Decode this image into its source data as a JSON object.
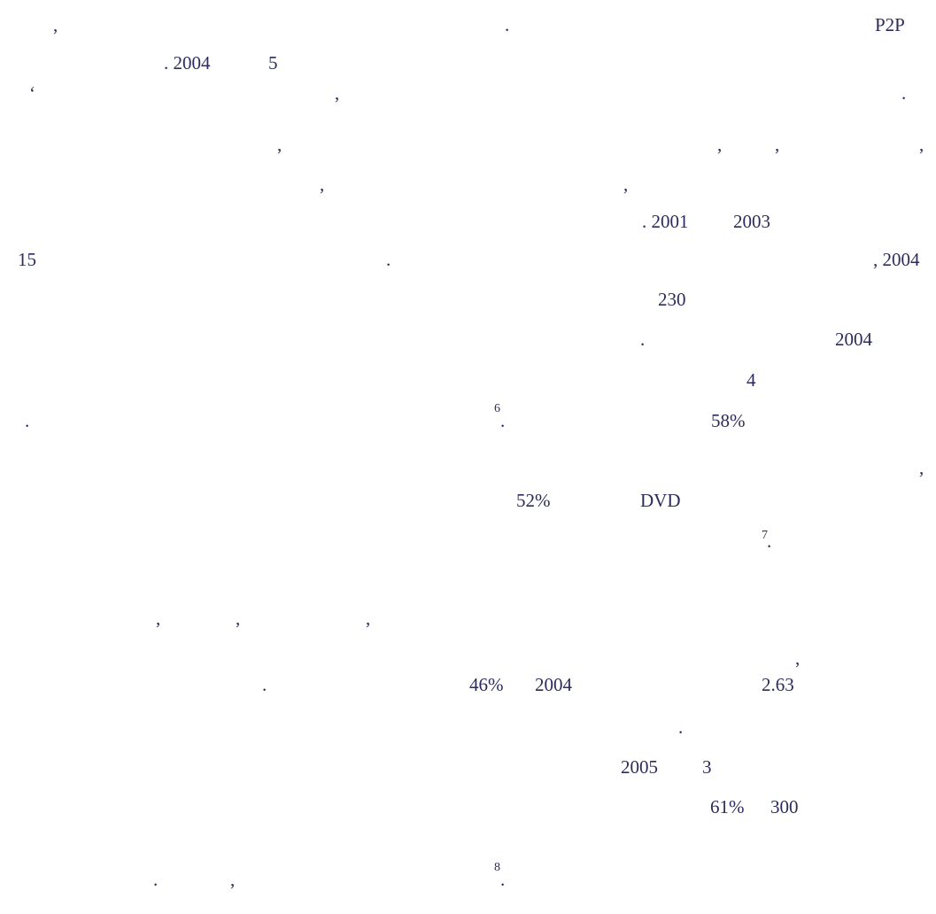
{
  "fragments": [
    ",",
    ".",
    "P2P",
    ". 2004",
    "5",
    "‘",
    ",",
    ".",
    ",",
    ",",
    ",",
    ",",
    ",",
    ",",
    ". 2001",
    "2003",
    "15",
    ".",
    ", 2004",
    "230",
    ".",
    "2004",
    "4",
    ".",
    "6",
    ".",
    "58%",
    ",",
    "52%",
    "DVD",
    "7",
    ".",
    ",",
    ",",
    ",",
    ",",
    ".",
    "46%",
    "2004",
    "2.63",
    ".",
    "2005",
    "3",
    "61%",
    "300",
    ".",
    ",",
    "8",
    "."
  ]
}
